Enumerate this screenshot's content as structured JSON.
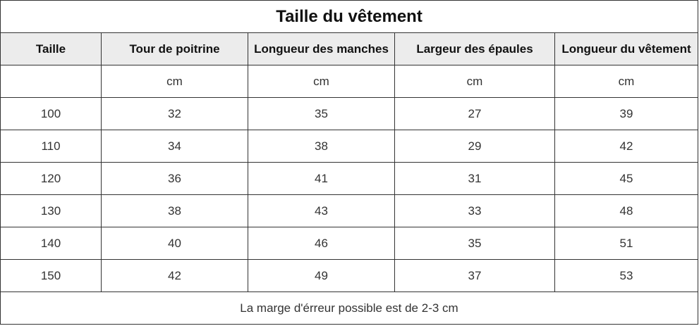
{
  "title": "Taille du vêtement",
  "headers": [
    "Taille",
    "Tour de poitrine",
    "Longueur des manches",
    "Largeur des épaules",
    "Longueur du vêtement"
  ],
  "rows": [
    [
      "",
      "cm",
      "cm",
      "cm",
      "cm"
    ],
    [
      "100",
      "32",
      "35",
      "27",
      "39"
    ],
    [
      "110",
      "34",
      "38",
      "29",
      "42"
    ],
    [
      "120",
      "36",
      "41",
      "31",
      "45"
    ],
    [
      "130",
      "38",
      "43",
      "33",
      "48"
    ],
    [
      "140",
      "40",
      "46",
      "35",
      "51"
    ],
    [
      "150",
      "42",
      "49",
      "37",
      "53"
    ]
  ],
  "note": "La marge d'érreur possible est de 2-3 cm"
}
